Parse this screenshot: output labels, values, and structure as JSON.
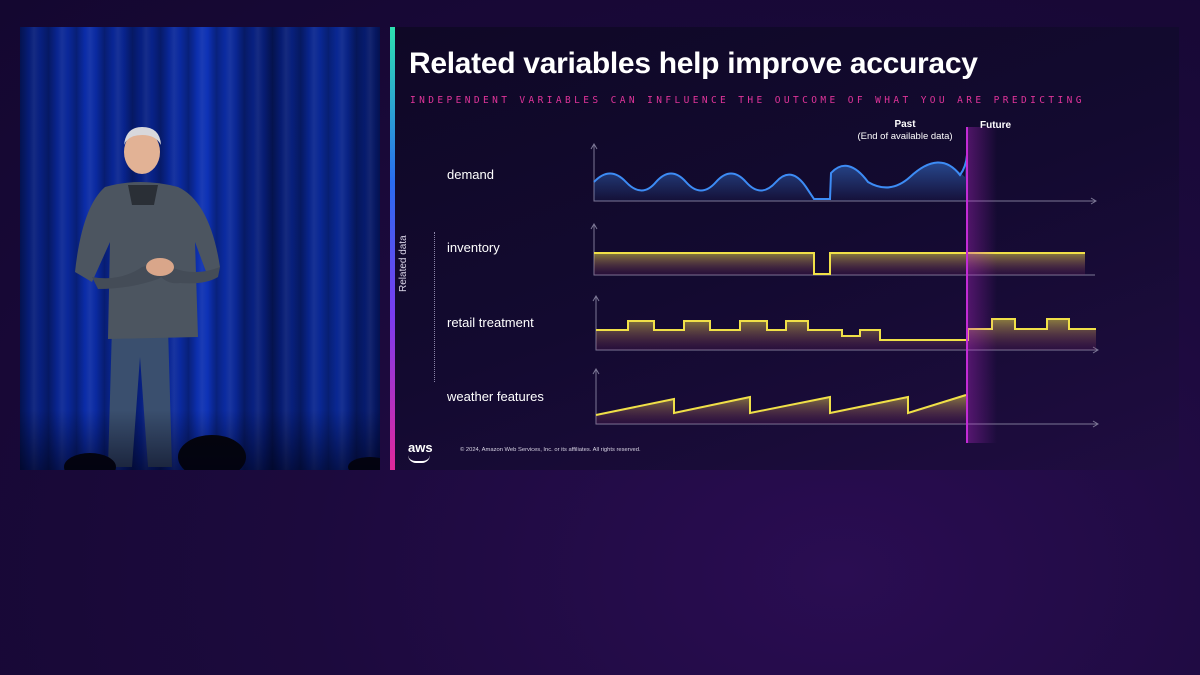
{
  "slide": {
    "title": "Related variables help improve accuracy",
    "subtitle": "INDEPENDENT VARIABLES CAN INFLUENCE THE OUTCOME OF WHAT YOU ARE PREDICTING",
    "past_label": "Past",
    "past_sublabel": "(End of available data)",
    "future_label": "Future",
    "related_data_label": "Related data",
    "rows": [
      {
        "label": "demand",
        "color": "#3d8cf5"
      },
      {
        "label": "inventory",
        "color": "#f0e048"
      },
      {
        "label": "retail treatment",
        "color": "#f0e048"
      },
      {
        "label": "weather features",
        "color": "#f0e048"
      }
    ],
    "logo": "aws",
    "copyright": "© 2024, Amazon Web Services, Inc. or its affiliates. All rights reserved."
  },
  "colors": {
    "accent_pink": "#e0349a",
    "divider_magenta": "#c42bd6",
    "background": "#1c0a3d"
  }
}
